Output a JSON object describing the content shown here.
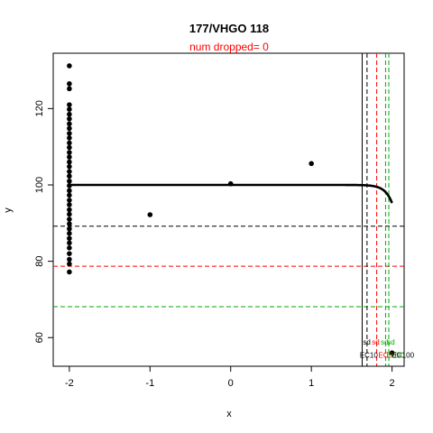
{
  "chart_data": {
    "type": "scatter",
    "title": "177/VHGO 118",
    "subtitle": "num dropped= 0",
    "xlabel": "x",
    "ylabel": "y",
    "xlim": [
      -2.2,
      2.15
    ],
    "ylim": [
      52.5,
      134.5
    ],
    "xticks": [
      -2,
      -1,
      0,
      1,
      2
    ],
    "yticks": [
      60,
      80,
      100,
      120
    ],
    "points": [
      {
        "x": -2,
        "y": 131.2
      },
      {
        "x": -2,
        "y": 126.5
      },
      {
        "x": -2,
        "y": 125.2
      },
      {
        "x": -2,
        "y": 121.0
      },
      {
        "x": -2,
        "y": 119.8
      },
      {
        "x": -2,
        "y": 118.5
      },
      {
        "x": -2,
        "y": 117.3
      },
      {
        "x": -2,
        "y": 116.0
      },
      {
        "x": -2,
        "y": 114.8
      },
      {
        "x": -2,
        "y": 113.5
      },
      {
        "x": -2,
        "y": 112.3
      },
      {
        "x": -2,
        "y": 111.0
      },
      {
        "x": -2,
        "y": 109.8
      },
      {
        "x": -2,
        "y": 108.5
      },
      {
        "x": -2,
        "y": 107.3
      },
      {
        "x": -2,
        "y": 106.0
      },
      {
        "x": -2,
        "y": 104.8
      },
      {
        "x": -2,
        "y": 103.5
      },
      {
        "x": -2,
        "y": 102.3
      },
      {
        "x": -2,
        "y": 101.0
      },
      {
        "x": -2,
        "y": 99.8
      },
      {
        "x": -2,
        "y": 98.5
      },
      {
        "x": -2,
        "y": 97.3
      },
      {
        "x": -2,
        "y": 96.0
      },
      {
        "x": -2,
        "y": 94.8
      },
      {
        "x": -2,
        "y": 93.5
      },
      {
        "x": -2,
        "y": 92.3
      },
      {
        "x": -2,
        "y": 91.0
      },
      {
        "x": -2,
        "y": 89.8
      },
      {
        "x": -2,
        "y": 88.5
      },
      {
        "x": -2,
        "y": 87.3
      },
      {
        "x": -2,
        "y": 86.0
      },
      {
        "x": -2,
        "y": 84.8
      },
      {
        "x": -2,
        "y": 83.5
      },
      {
        "x": -2,
        "y": 82.0
      },
      {
        "x": -2,
        "y": 80.5
      },
      {
        "x": -2,
        "y": 79.3
      },
      {
        "x": -2,
        "y": 77.2
      },
      {
        "x": -1,
        "y": 92.2
      },
      {
        "x": 0,
        "y": 100.3
      },
      {
        "x": 1,
        "y": 105.6
      },
      {
        "x": 2,
        "y": 56.0
      }
    ],
    "fit_curve": {
      "top": 100.0,
      "bottom": 0,
      "ec50": 2.25,
      "slope": 12,
      "x_range": [
        -2,
        2
      ]
    },
    "reference_lines": {
      "horizontal": [
        {
          "y": 89.2,
          "color": "#000000",
          "style": "dashed"
        },
        {
          "y": 78.7,
          "color": "#ff0000",
          "style": "dashed"
        },
        {
          "y": 68.1,
          "color": "#00aa00",
          "style": "dashed"
        }
      ],
      "vertical": [
        {
          "x": 1.63,
          "color": "#000000",
          "style": "solid"
        },
        {
          "x": 1.69,
          "color": "#000000",
          "style": "dashed"
        },
        {
          "x": 1.81,
          "color": "#ff0000",
          "style": "dashed"
        },
        {
          "x": 1.92,
          "color": "#00aa00",
          "style": "dashed"
        },
        {
          "x": 1.96,
          "color": "#00aa00",
          "style": "dashed"
        }
      ]
    },
    "annotations": [
      {
        "text": "sd",
        "x": 1.64,
        "y": 58.2,
        "color": "#000000"
      },
      {
        "text": "sd",
        "x": 1.75,
        "y": 58.2,
        "color": "#ff0000"
      },
      {
        "text": "sd",
        "x": 1.86,
        "y": 58.2,
        "color": "#00aa00"
      },
      {
        "text": "sd",
        "x": 1.94,
        "y": 58.2,
        "color": "#00aa00"
      },
      {
        "text": "EC10",
        "x": 1.6,
        "y": 54.7,
        "color": "#000000"
      },
      {
        "text": "EC50",
        "x": 1.83,
        "y": 54.7,
        "color": "#ff0000"
      },
      {
        "text": "EC90",
        "x": 1.93,
        "y": 54.7,
        "color": "#00aa00"
      },
      {
        "text": "EC100",
        "x": 2.0,
        "y": 54.7,
        "color": "#000000"
      }
    ],
    "grid": false,
    "legend": "none"
  }
}
